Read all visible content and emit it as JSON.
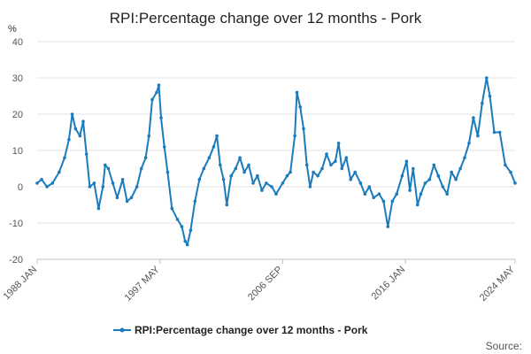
{
  "title": "RPI:Percentage change over 12 months - Pork",
  "source_label": "Source:",
  "chart_data": {
    "type": "line",
    "title": "RPI:Percentage change over 12 months - Pork",
    "ylabel": "%",
    "xlabel": "",
    "ylim": [
      -20,
      40
    ],
    "yticks": [
      -20,
      -10,
      0,
      10,
      20,
      30,
      40
    ],
    "xlim": [
      "1988-01",
      "2024-05"
    ],
    "xticks": [
      "1988 JAN",
      "1997 MAY",
      "2006 SEP",
      "2016 JAN",
      "2024 MAY"
    ],
    "grid": true,
    "legend": "bottom",
    "series_color": "#1a7bbd",
    "series": [
      {
        "name": "RPI:Percentage change over 12 months - Pork",
        "points": [
          [
            "1988-01",
            1
          ],
          [
            "1988-05",
            2
          ],
          [
            "1988-10",
            0
          ],
          [
            "1989-03",
            1
          ],
          [
            "1989-09",
            4
          ],
          [
            "1990-02",
            8
          ],
          [
            "1990-06",
            13
          ],
          [
            "1990-09",
            20
          ],
          [
            "1990-12",
            16
          ],
          [
            "1991-04",
            14
          ],
          [
            "1991-07",
            18
          ],
          [
            "1991-10",
            9
          ],
          [
            "1992-01",
            0
          ],
          [
            "1992-05",
            1
          ],
          [
            "1992-09",
            -6
          ],
          [
            "1993-01",
            0
          ],
          [
            "1993-03",
            6
          ],
          [
            "1993-06",
            5
          ],
          [
            "1993-10",
            1
          ],
          [
            "1994-02",
            -3
          ],
          [
            "1994-07",
            2
          ],
          [
            "1994-11",
            -4
          ],
          [
            "1995-03",
            -3
          ],
          [
            "1995-08",
            0
          ],
          [
            "1995-12",
            5
          ],
          [
            "1996-04",
            8
          ],
          [
            "1996-07",
            14
          ],
          [
            "1996-10",
            24
          ],
          [
            "1997-02",
            26
          ],
          [
            "1997-04",
            28
          ],
          [
            "1997-06",
            19
          ],
          [
            "1997-09",
            11
          ],
          [
            "1997-12",
            4
          ],
          [
            "1998-04",
            -6
          ],
          [
            "1998-09",
            -9
          ],
          [
            "1999-01",
            -11
          ],
          [
            "1999-04",
            -15
          ],
          [
            "1999-06",
            -16
          ],
          [
            "1999-09",
            -12
          ],
          [
            "2000-01",
            -4
          ],
          [
            "2000-05",
            2
          ],
          [
            "2000-09",
            5
          ],
          [
            "2001-02",
            8
          ],
          [
            "2001-06",
            11
          ],
          [
            "2001-09",
            14
          ],
          [
            "2001-12",
            6
          ],
          [
            "2002-03",
            2
          ],
          [
            "2002-06",
            -5
          ],
          [
            "2002-10",
            3
          ],
          [
            "2003-02",
            5
          ],
          [
            "2003-06",
            8
          ],
          [
            "2003-10",
            4
          ],
          [
            "2004-02",
            6
          ],
          [
            "2004-06",
            1
          ],
          [
            "2004-10",
            3
          ],
          [
            "2005-02",
            -1
          ],
          [
            "2005-06",
            1
          ],
          [
            "2005-11",
            0
          ],
          [
            "2006-03",
            -2
          ],
          [
            "2006-09",
            1
          ],
          [
            "2007-01",
            3
          ],
          [
            "2007-04",
            4
          ],
          [
            "2007-08",
            14
          ],
          [
            "2007-10",
            26
          ],
          [
            "2008-01",
            22
          ],
          [
            "2008-04",
            16
          ],
          [
            "2008-07",
            6
          ],
          [
            "2008-10",
            0
          ],
          [
            "2009-01",
            4
          ],
          [
            "2009-05",
            3
          ],
          [
            "2009-09",
            5
          ],
          [
            "2010-01",
            9
          ],
          [
            "2010-05",
            6
          ],
          [
            "2010-09",
            7
          ],
          [
            "2010-12",
            12
          ],
          [
            "2011-03",
            5
          ],
          [
            "2011-07",
            8
          ],
          [
            "2011-11",
            2
          ],
          [
            "2012-03",
            4
          ],
          [
            "2012-08",
            1
          ],
          [
            "2012-12",
            -2
          ],
          [
            "2013-04",
            0
          ],
          [
            "2013-08",
            -3
          ],
          [
            "2014-01",
            -2
          ],
          [
            "2014-05",
            -4
          ],
          [
            "2014-09",
            -11
          ],
          [
            "2015-01",
            -4
          ],
          [
            "2015-05",
            -2
          ],
          [
            "2015-10",
            3
          ],
          [
            "2016-02",
            7
          ],
          [
            "2016-05",
            -1
          ],
          [
            "2016-08",
            5
          ],
          [
            "2016-12",
            -5
          ],
          [
            "2017-03",
            -2
          ],
          [
            "2017-07",
            1
          ],
          [
            "2017-11",
            2
          ],
          [
            "2018-03",
            6
          ],
          [
            "2018-07",
            3
          ],
          [
            "2018-11",
            0
          ],
          [
            "2019-03",
            -2
          ],
          [
            "2019-07",
            4
          ],
          [
            "2019-11",
            2
          ],
          [
            "2020-03",
            5
          ],
          [
            "2020-07",
            8
          ],
          [
            "2020-11",
            12
          ],
          [
            "2021-03",
            19
          ],
          [
            "2021-07",
            14
          ],
          [
            "2021-11",
            23
          ],
          [
            "2022-03",
            30
          ],
          [
            "2022-06",
            25
          ],
          [
            "2022-10",
            15
          ],
          [
            "2023-03",
            15
          ],
          [
            "2023-08",
            6
          ],
          [
            "2024-01",
            4
          ],
          [
            "2024-05",
            1
          ]
        ]
      }
    ]
  }
}
